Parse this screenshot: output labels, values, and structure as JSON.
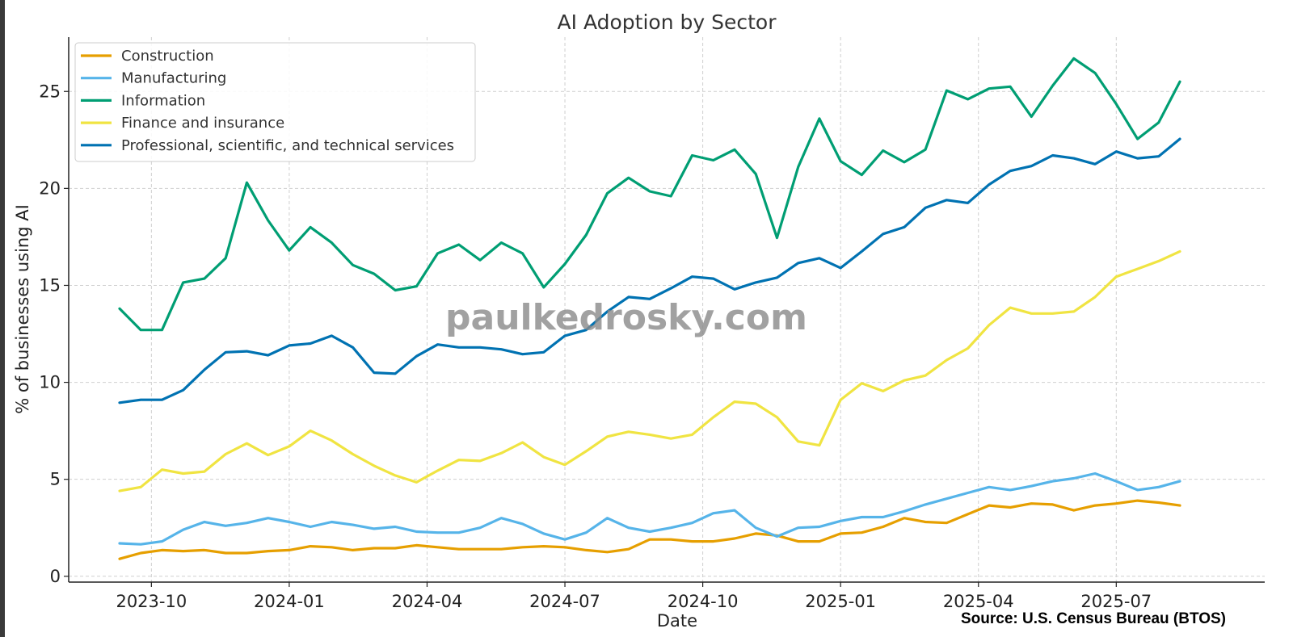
{
  "chart_data": {
    "type": "line",
    "title": "AI Adoption by Sector",
    "xlabel": "Date",
    "ylabel": "% of businesses using AI",
    "source": "Source: U.S. Census Bureau (BTOS)",
    "watermark": "paulkedrosky.com",
    "grid": true,
    "legend_position": "top-left",
    "ylim": [
      -0.3,
      27.8
    ],
    "yticks": [
      0,
      5,
      10,
      15,
      20,
      25
    ],
    "xlim_index": [
      -2.4,
      54
    ],
    "x_tick_index": [
      1.5,
      8,
      14.5,
      21,
      27.5,
      34,
      40.5,
      47
    ],
    "x_tick_labels": [
      "2023-10",
      "2024-01",
      "2024-04",
      "2024-07",
      "2024-10",
      "2025-01",
      "2025-04",
      "2025-07"
    ],
    "x_start": "2023-09",
    "x_step": "biweekly",
    "series": [
      {
        "name": "Construction",
        "color": "#E69F00",
        "values": [
          0.9,
          1.2,
          1.35,
          1.3,
          1.35,
          1.2,
          1.2,
          1.3,
          1.35,
          1.55,
          1.5,
          1.35,
          1.45,
          1.45,
          1.6,
          1.5,
          1.4,
          1.4,
          1.4,
          1.5,
          1.55,
          1.5,
          1.35,
          1.25,
          1.4,
          1.9,
          1.9,
          1.8,
          1.8,
          1.95,
          2.2,
          2.1,
          1.8,
          1.8,
          2.2,
          2.25,
          2.55,
          3.0,
          2.8,
          2.75,
          3.2,
          3.65,
          3.55,
          3.75,
          3.7,
          3.4,
          3.65,
          3.75,
          3.9,
          3.8,
          3.65
        ]
      },
      {
        "name": "Manufacturing",
        "color": "#56B4E9",
        "values": [
          1.7,
          1.65,
          1.8,
          2.4,
          2.8,
          2.6,
          2.75,
          3.0,
          2.8,
          2.55,
          2.8,
          2.65,
          2.45,
          2.55,
          2.3,
          2.25,
          2.25,
          2.5,
          3.0,
          2.7,
          2.2,
          1.9,
          2.25,
          3.0,
          2.5,
          2.3,
          2.5,
          2.75,
          3.25,
          3.4,
          2.5,
          2.05,
          2.5,
          2.55,
          2.85,
          3.05,
          3.05,
          3.35,
          3.7,
          4.0,
          4.3,
          4.6,
          4.45,
          4.65,
          4.9,
          5.05,
          5.3,
          4.9,
          4.45,
          4.6,
          4.9
        ]
      },
      {
        "name": "Information",
        "color": "#009E73",
        "values": [
          13.8,
          12.7,
          12.7,
          15.15,
          15.35,
          16.4,
          20.3,
          18.35,
          16.8,
          18.0,
          17.2,
          16.05,
          15.6,
          14.75,
          14.95,
          16.65,
          17.1,
          16.3,
          17.2,
          16.65,
          14.9,
          16.1,
          17.6,
          19.75,
          20.55,
          19.85,
          19.6,
          21.7,
          21.45,
          22.0,
          20.75,
          17.45,
          21.1,
          23.6,
          21.4,
          20.7,
          21.95,
          21.35,
          22.0,
          25.05,
          24.6,
          25.15,
          25.25,
          23.7,
          25.3,
          26.7,
          25.95,
          24.35,
          22.55,
          23.4,
          25.5
        ]
      },
      {
        "name": "Finance and insurance",
        "color": "#F0E442",
        "values": [
          4.4,
          4.6,
          5.5,
          5.3,
          5.4,
          6.3,
          6.85,
          6.25,
          6.7,
          7.5,
          7.0,
          6.3,
          5.7,
          5.2,
          4.85,
          5.45,
          6.0,
          5.95,
          6.35,
          6.9,
          6.15,
          5.75,
          6.45,
          7.2,
          7.45,
          7.3,
          7.1,
          7.3,
          8.2,
          9.0,
          8.9,
          8.2,
          6.95,
          6.75,
          9.1,
          9.95,
          9.55,
          10.1,
          10.35,
          11.15,
          11.75,
          12.95,
          13.85,
          13.55,
          13.55,
          13.65,
          14.4,
          15.45,
          15.85,
          16.25,
          16.75
        ]
      },
      {
        "name": "Professional, scientific, and technical services",
        "color": "#0072B2",
        "values": [
          8.95,
          9.1,
          9.1,
          9.6,
          10.65,
          11.55,
          11.6,
          11.4,
          11.9,
          12.0,
          12.4,
          11.8,
          10.5,
          10.45,
          11.35,
          11.95,
          11.8,
          11.8,
          11.7,
          11.45,
          11.55,
          12.4,
          12.7,
          13.65,
          14.4,
          14.3,
          14.85,
          15.45,
          15.35,
          14.8,
          15.15,
          15.4,
          16.15,
          16.4,
          15.9,
          16.75,
          17.65,
          18.0,
          19.0,
          19.4,
          19.25,
          20.2,
          20.9,
          21.15,
          21.7,
          21.55,
          21.25,
          21.9,
          21.55,
          21.65,
          22.55
        ]
      }
    ]
  }
}
